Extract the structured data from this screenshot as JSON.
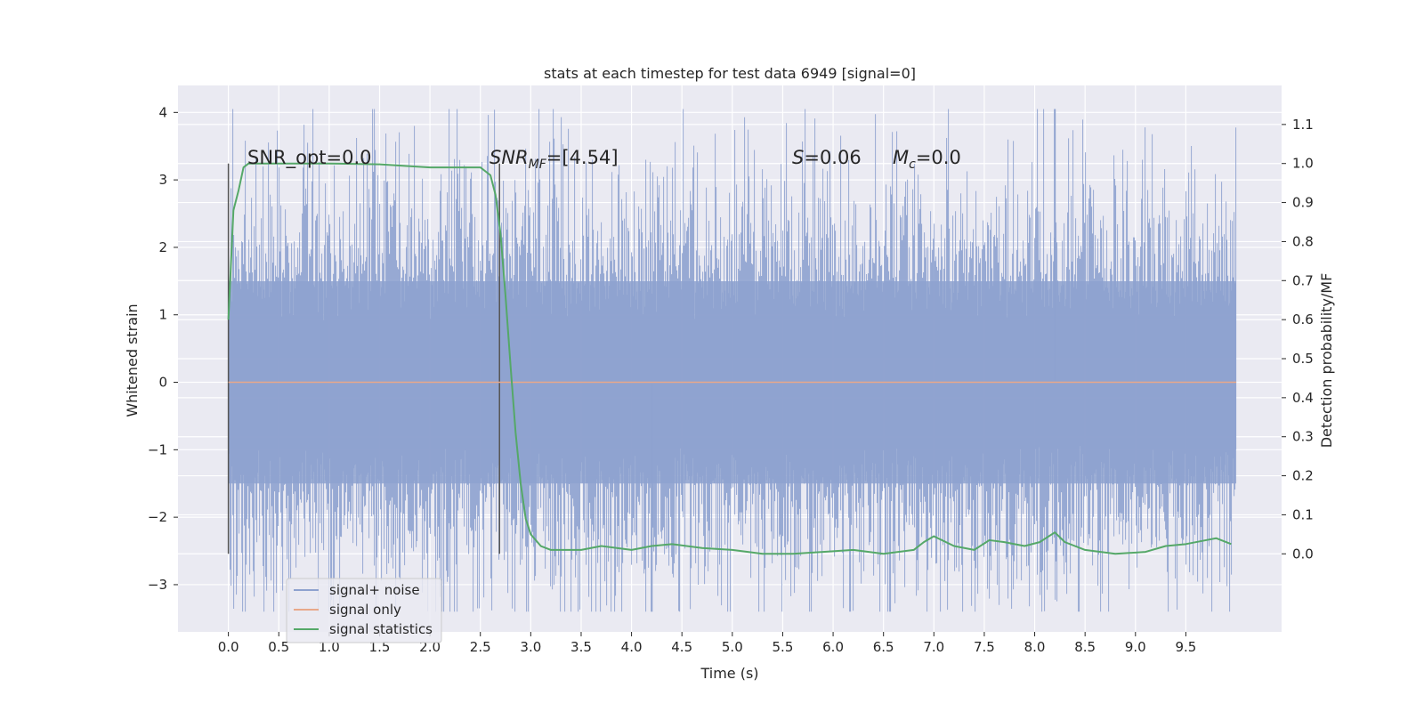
{
  "chart_data": {
    "type": "line",
    "title": "stats at each timestep for test data 6949 [signal=0]",
    "xlabel": "Time (s)",
    "ylabel": "Whitened strain",
    "ylabel_right": "Detection probability/MF",
    "xlim": [
      -0.5,
      10.45
    ],
    "ylim": [
      -3.7,
      4.4
    ],
    "ylim_right": [
      -0.2,
      1.2
    ],
    "x_ticks": [
      "0.0",
      "0.5",
      "1.0",
      "1.5",
      "2.0",
      "2.5",
      "3.0",
      "3.5",
      "4.0",
      "4.5",
      "5.0",
      "5.5",
      "6.0",
      "6.5",
      "7.0",
      "7.5",
      "8.0",
      "8.5",
      "9.0",
      "9.5"
    ],
    "y_ticks": [
      "−3",
      "−2",
      "−1",
      "0",
      "1",
      "2",
      "3",
      "4"
    ],
    "y_ticks_right": [
      "0.0",
      "0.1",
      "0.2",
      "0.3",
      "0.4",
      "0.5",
      "0.6",
      "0.7",
      "0.8",
      "0.9",
      "1.0",
      "1.1"
    ],
    "grid": true,
    "legend_position": "lower-left",
    "annotations": {
      "snr_opt": "SNR_opt=0.0",
      "snr_mf_main": "SNR",
      "snr_mf_sub": "MF",
      "snr_mf_value": "=[4.54]",
      "s_main": "S",
      "s_value": "=0.06",
      "mc_main": "M",
      "mc_sub": "c",
      "mc_value": "=0.0"
    },
    "vertical_markers": [
      0.0,
      2.69
    ],
    "series": [
      {
        "name": "signal+ noise",
        "color": "#8ea2cf",
        "kind": "noise",
        "x_range": [
          0.0,
          10.0
        ],
        "typical_band": [
          -1.5,
          1.5
        ],
        "extremes": [
          -3.4,
          4.05
        ]
      },
      {
        "name": "signal only",
        "color": "#dd8452",
        "x": [
          0.0,
          10.0
        ],
        "values": [
          0.0,
          0.0
        ]
      },
      {
        "name": "signal statistics",
        "color": "#55a868",
        "axis": "right",
        "x": [
          0.0,
          0.05,
          0.1,
          0.15,
          0.2,
          0.3,
          0.5,
          0.8,
          1.0,
          1.5,
          2.0,
          2.3,
          2.5,
          2.6,
          2.65,
          2.7,
          2.75,
          2.8,
          2.85,
          2.9,
          2.95,
          3.0,
          3.1,
          3.2,
          3.5,
          3.7,
          4.0,
          4.2,
          4.4,
          4.7,
          5.0,
          5.3,
          5.6,
          5.9,
          6.2,
          6.5,
          6.8,
          6.9,
          7.0,
          7.2,
          7.4,
          7.55,
          7.7,
          7.9,
          8.05,
          8.2,
          8.3,
          8.5,
          8.8,
          9.1,
          9.3,
          9.5,
          9.7,
          9.8,
          9.95
        ],
        "values": [
          0.6,
          0.88,
          0.93,
          0.99,
          1.0,
          1.0,
          1.0,
          1.0,
          1.0,
          0.998,
          0.99,
          0.99,
          0.99,
          0.97,
          0.92,
          0.82,
          0.66,
          0.48,
          0.31,
          0.18,
          0.09,
          0.05,
          0.02,
          0.01,
          0.01,
          0.02,
          0.01,
          0.02,
          0.025,
          0.015,
          0.01,
          0.0,
          0.0,
          0.005,
          0.01,
          0.0,
          0.01,
          0.03,
          0.045,
          0.02,
          0.01,
          0.035,
          0.03,
          0.02,
          0.03,
          0.055,
          0.03,
          0.01,
          0.0,
          0.005,
          0.02,
          0.025,
          0.035,
          0.04,
          0.025
        ]
      }
    ]
  }
}
